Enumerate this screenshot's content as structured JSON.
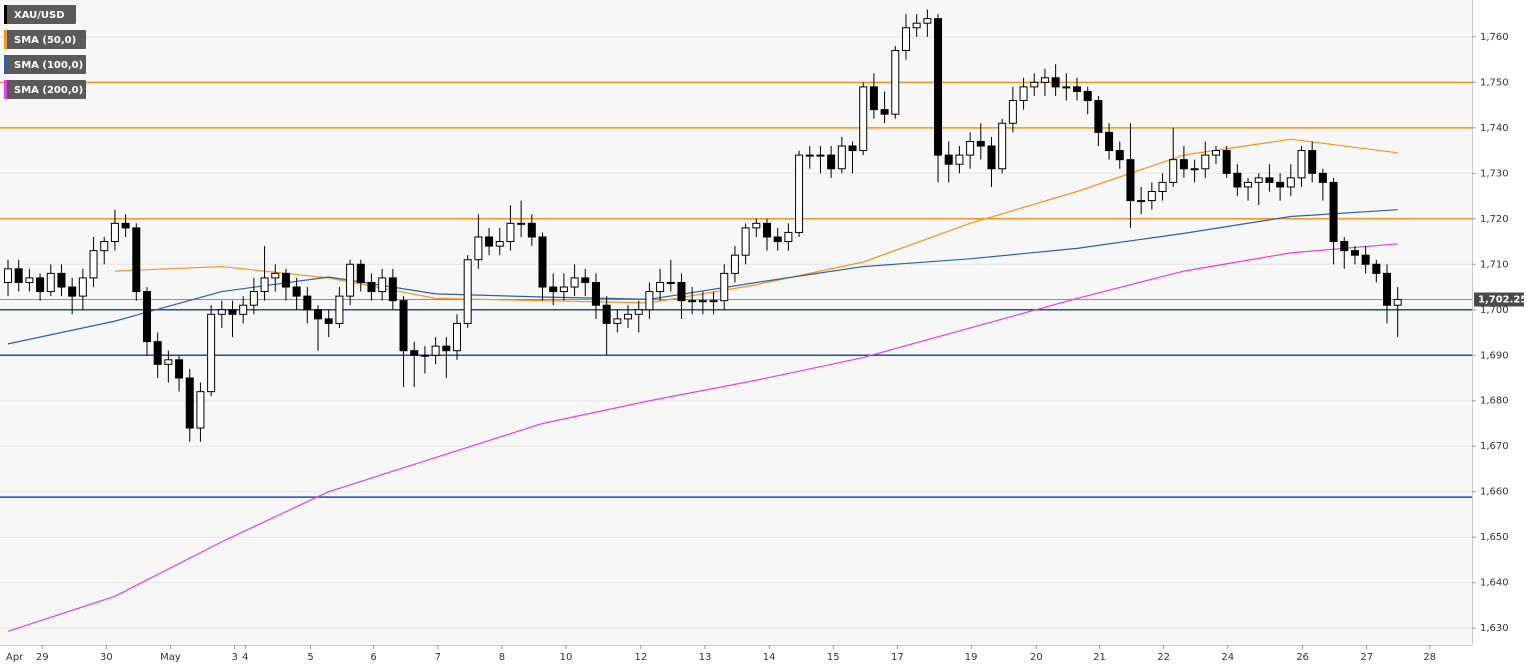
{
  "chart_data": {
    "type": "candlestick",
    "ylim": [
      1626.3,
      1768.1
    ],
    "yticks": [
      {
        "value": 1630,
        "label": "1,630"
      },
      {
        "value": 1640,
        "label": "1,640"
      },
      {
        "value": 1650,
        "label": "1,650"
      },
      {
        "value": 1660,
        "label": "1,660"
      },
      {
        "value": 1670,
        "label": "1,670"
      },
      {
        "value": 1680,
        "label": "1,680"
      },
      {
        "value": 1690,
        "label": "1,690"
      },
      {
        "value": 1700,
        "label": "1,700"
      },
      {
        "value": 1710,
        "label": "1,710"
      },
      {
        "value": 1720,
        "label": "1,720"
      },
      {
        "value": 1730,
        "label": "1,730"
      },
      {
        "value": 1740,
        "label": "1,740"
      },
      {
        "value": 1750,
        "label": "1,750"
      },
      {
        "value": 1760,
        "label": "1,760"
      }
    ],
    "xlim": [
      -0.75,
      136.95
    ],
    "x_month_label": "Apr",
    "xticks": [
      {
        "value": 3.2,
        "label": "29"
      },
      {
        "value": 9.2,
        "label": "30"
      },
      {
        "value": 15.2,
        "label": "May"
      },
      {
        "value": 21.2,
        "label": "3"
      },
      {
        "value": 22.2,
        "label": "4"
      },
      {
        "value": 28.3,
        "label": "5"
      },
      {
        "value": 34.2,
        "label": "6"
      },
      {
        "value": 40.2,
        "label": "7"
      },
      {
        "value": 46.2,
        "label": "8"
      },
      {
        "value": 52.2,
        "label": "10"
      },
      {
        "value": 59.2,
        "label": "12"
      },
      {
        "value": 65.2,
        "label": "13"
      },
      {
        "value": 71.2,
        "label": "14"
      },
      {
        "value": 77.2,
        "label": "15"
      },
      {
        "value": 83.2,
        "label": "17"
      },
      {
        "value": 90.1,
        "label": "19"
      },
      {
        "value": 96.2,
        "label": "20"
      },
      {
        "value": 102.1,
        "label": "21"
      },
      {
        "value": 108.1,
        "label": "22"
      },
      {
        "value": 114.1,
        "label": "24"
      },
      {
        "value": 121.1,
        "label": "26"
      },
      {
        "value": 127.1,
        "label": "27"
      },
      {
        "value": 133.0,
        "label": "28"
      }
    ],
    "grid": true,
    "levels": [
      {
        "value": 1750,
        "color": "#f7931e"
      },
      {
        "value": 1740,
        "color": "#f7931e"
      },
      {
        "value": 1720,
        "color": "#f7931e"
      },
      {
        "value": 1700,
        "color": "#1f4e9c"
      },
      {
        "value": 1690,
        "color": "#1f4e9c"
      },
      {
        "value": 1658.8,
        "color": "#1f4e9c"
      }
    ],
    "last_price": {
      "value": 1702.25,
      "label": "1,702.25"
    },
    "series": [
      {
        "name": "XAU/USD",
        "color": "#000000",
        "candles": [
          [
            1706,
            1711,
            1703,
            1709
          ],
          [
            1709,
            1711,
            1704,
            1706
          ],
          [
            1706,
            1709,
            1704,
            1707
          ],
          [
            1707,
            1708,
            1702,
            1704
          ],
          [
            1704,
            1710,
            1703,
            1708
          ],
          [
            1708,
            1710,
            1703,
            1705
          ],
          [
            1705,
            1707,
            1699,
            1703
          ],
          [
            1703,
            1709,
            1700,
            1707
          ],
          [
            1707,
            1716,
            1705,
            1713
          ],
          [
            1713,
            1716,
            1710,
            1715
          ],
          [
            1715,
            1722,
            1713,
            1719
          ],
          [
            1719,
            1721,
            1716,
            1718
          ],
          [
            1718,
            1719,
            1702,
            1704
          ],
          [
            1704,
            1705,
            1690,
            1693
          ],
          [
            1693,
            1695,
            1685,
            1688
          ],
          [
            1688,
            1691,
            1684,
            1689
          ],
          [
            1689,
            1690,
            1682,
            1685
          ],
          [
            1685,
            1687,
            1671,
            1674
          ],
          [
            1674,
            1684,
            1671,
            1682
          ],
          [
            1682,
            1701,
            1681,
            1699
          ],
          [
            1699,
            1702,
            1696,
            1700
          ],
          [
            1700,
            1702,
            1694,
            1699
          ],
          [
            1699,
            1703,
            1697,
            1701
          ],
          [
            1701,
            1707,
            1699,
            1704
          ],
          [
            1704,
            1714,
            1702,
            1707
          ],
          [
            1707,
            1710,
            1704,
            1708
          ],
          [
            1708,
            1709,
            1702,
            1705
          ],
          [
            1705,
            1707,
            1700,
            1703
          ],
          [
            1703,
            1705,
            1697,
            1700
          ],
          [
            1700,
            1701,
            1691,
            1698
          ],
          [
            1698,
            1700,
            1694,
            1697
          ],
          [
            1697,
            1705,
            1696,
            1703
          ],
          [
            1703,
            1711,
            1701,
            1710
          ],
          [
            1710,
            1711,
            1704,
            1706
          ],
          [
            1706,
            1708,
            1702,
            1704
          ],
          [
            1704,
            1709,
            1702,
            1707
          ],
          [
            1707,
            1709,
            1700,
            1702
          ],
          [
            1702,
            1703,
            1683,
            1691
          ],
          [
            1691,
            1693,
            1683,
            1690
          ],
          [
            1690,
            1692,
            1686,
            1690
          ],
          [
            1690,
            1694,
            1688,
            1692
          ],
          [
            1692,
            1694,
            1685,
            1691
          ],
          [
            1691,
            1699,
            1689,
            1697
          ],
          [
            1697,
            1712,
            1696,
            1711
          ],
          [
            1711,
            1721,
            1709,
            1716
          ],
          [
            1716,
            1718,
            1712,
            1714
          ],
          [
            1714,
            1718,
            1712,
            1715
          ],
          [
            1715,
            1723,
            1713,
            1719
          ],
          [
            1719,
            1724,
            1716,
            1719
          ],
          [
            1719,
            1721,
            1714,
            1716
          ],
          [
            1716,
            1717,
            1702,
            1705
          ],
          [
            1705,
            1708,
            1701,
            1704
          ],
          [
            1704,
            1708,
            1702,
            1705
          ],
          [
            1705,
            1710,
            1703,
            1707
          ],
          [
            1707,
            1709,
            1703,
            1706
          ],
          [
            1706,
            1708,
            1698,
            1701
          ],
          [
            1701,
            1703,
            1690,
            1697
          ],
          [
            1697,
            1700,
            1695,
            1698
          ],
          [
            1698,
            1701,
            1696,
            1699
          ],
          [
            1699,
            1702,
            1695,
            1700
          ],
          [
            1700,
            1706,
            1698,
            1704
          ],
          [
            1704,
            1709,
            1702,
            1706
          ],
          [
            1706,
            1711,
            1704,
            1706
          ],
          [
            1706,
            1708,
            1698,
            1702
          ],
          [
            1702,
            1705,
            1699,
            1702
          ],
          [
            1702,
            1704,
            1699,
            1702
          ],
          [
            1702,
            1704,
            1699,
            1702
          ],
          [
            1702,
            1710,
            1700,
            1708
          ],
          [
            1708,
            1714,
            1706,
            1712
          ],
          [
            1712,
            1719,
            1710,
            1718
          ],
          [
            1718,
            1720,
            1716,
            1719
          ],
          [
            1719,
            1720,
            1713,
            1716
          ],
          [
            1716,
            1718,
            1713,
            1715
          ],
          [
            1715,
            1719,
            1713,
            1717
          ],
          [
            1717,
            1735,
            1716,
            1734
          ],
          [
            1734,
            1736,
            1731,
            1734
          ],
          [
            1734,
            1736,
            1730,
            1734
          ],
          [
            1734,
            1736,
            1729,
            1731
          ],
          [
            1731,
            1738,
            1730,
            1736
          ],
          [
            1736,
            1737,
            1730,
            1735
          ],
          [
            1735,
            1750,
            1734,
            1749
          ],
          [
            1749,
            1752,
            1742,
            1744
          ],
          [
            1744,
            1748,
            1741,
            1743
          ],
          [
            1743,
            1758,
            1742,
            1757
          ],
          [
            1757,
            1765,
            1755,
            1762
          ],
          [
            1762,
            1765,
            1760,
            1763
          ],
          [
            1763,
            1766,
            1760,
            1764
          ],
          [
            1764,
            1765,
            1728,
            1734
          ],
          [
            1734,
            1737,
            1728,
            1732
          ],
          [
            1732,
            1736,
            1730,
            1734
          ],
          [
            1734,
            1739,
            1731,
            1737
          ],
          [
            1737,
            1741,
            1733,
            1736
          ],
          [
            1736,
            1738,
            1727,
            1731
          ],
          [
            1731,
            1742,
            1730,
            1741
          ],
          [
            1741,
            1749,
            1739,
            1746
          ],
          [
            1746,
            1751,
            1744,
            1749
          ],
          [
            1749,
            1752,
            1747,
            1750
          ],
          [
            1750,
            1753,
            1747,
            1751
          ],
          [
            1751,
            1754,
            1747,
            1749
          ],
          [
            1749,
            1752,
            1746,
            1749
          ],
          [
            1749,
            1751,
            1746,
            1748
          ],
          [
            1748,
            1749,
            1743,
            1746
          ],
          [
            1746,
            1747,
            1736,
            1739
          ],
          [
            1739,
            1741,
            1733,
            1735
          ],
          [
            1735,
            1737,
            1731,
            1733
          ],
          [
            1733,
            1741,
            1718,
            1724
          ],
          [
            1724,
            1727,
            1721,
            1724
          ],
          [
            1724,
            1728,
            1722,
            1726
          ],
          [
            1726,
            1730,
            1724,
            1728
          ],
          [
            1728,
            1740,
            1727,
            1733
          ],
          [
            1733,
            1736,
            1729,
            1731
          ],
          [
            1731,
            1733,
            1728,
            1731
          ],
          [
            1731,
            1737,
            1729,
            1734
          ],
          [
            1734,
            1736,
            1732,
            1735
          ],
          [
            1735,
            1736,
            1729,
            1730
          ],
          [
            1730,
            1732,
            1725,
            1727
          ],
          [
            1727,
            1729,
            1724,
            1728
          ],
          [
            1728,
            1730,
            1723,
            1729
          ],
          [
            1729,
            1732,
            1726,
            1728
          ],
          [
            1728,
            1730,
            1724,
            1727
          ],
          [
            1727,
            1732,
            1725,
            1729
          ],
          [
            1729,
            1736,
            1727,
            1735
          ],
          [
            1735,
            1737,
            1728,
            1730
          ],
          [
            1730,
            1731,
            1724,
            1728
          ],
          [
            1728,
            1729,
            1710,
            1715
          ],
          [
            1715,
            1716,
            1709,
            1713
          ],
          [
            1713,
            1714,
            1710,
            1712
          ],
          [
            1712,
            1714,
            1708,
            1710
          ],
          [
            1710,
            1711,
            1706,
            1708
          ],
          [
            1708,
            1710,
            1697,
            1701
          ],
          [
            1701,
            1705,
            1694,
            1702.25
          ]
        ]
      },
      {
        "name": "SMA (50,0)",
        "color": "#f7931e",
        "x": [
          10,
          20,
          30,
          40,
          50,
          60,
          70,
          80,
          90,
          100,
          110,
          120,
          130
        ],
        "values": [
          1708.5,
          1709.5,
          1707,
          1702.5,
          1702,
          1701.5,
          1705.5,
          1710.5,
          1719,
          1726,
          1734,
          1737.5,
          1734.5
        ]
      },
      {
        "name": "SMA (100,0)",
        "color": "#2e5fa8",
        "x": [
          0,
          10,
          20,
          30,
          40,
          50,
          60,
          70,
          80,
          90,
          100,
          110,
          120,
          130
        ],
        "values": [
          1692.5,
          1697.5,
          1704,
          1707.2,
          1703.5,
          1702.8,
          1702.3,
          1706,
          1709.5,
          1711.2,
          1713.5,
          1716.8,
          1720.5,
          1722
        ]
      },
      {
        "name": "SMA (200,0)",
        "color": "#e83de8",
        "x": [
          0,
          10,
          20,
          30,
          40,
          50,
          60,
          70,
          80,
          90,
          100,
          110,
          120,
          130
        ],
        "values": [
          1629.3,
          1637,
          1649,
          1660,
          1667.5,
          1675,
          1680,
          1684.5,
          1689.5,
          1696,
          1702.5,
          1708.5,
          1712.5,
          1714.5
        ]
      }
    ]
  }
}
